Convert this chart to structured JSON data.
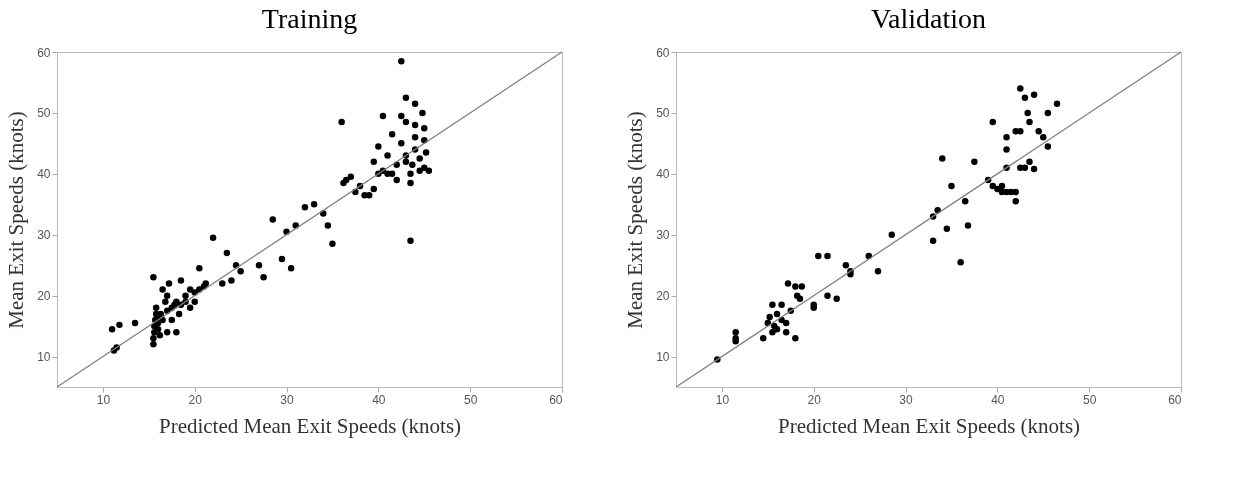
{
  "chart_data": [
    {
      "type": "scatter",
      "title": "Training",
      "xlabel": "Predicted  Mean Exit Speeds (knots)",
      "ylabel": "Mean Exit Speeds (knots)",
      "xlim": [
        5,
        60
      ],
      "ylim": [
        5,
        60
      ],
      "xticks": [
        10,
        20,
        30,
        40,
        50,
        60
      ],
      "yticks": [
        10,
        20,
        30,
        40,
        50,
        60
      ],
      "grid": false,
      "series": [
        {
          "marker": "circle",
          "color": "#000000",
          "x": [
            11,
            11.2,
            11.5,
            11.8,
            13.5,
            15.5,
            15.5,
            15.5,
            15.6,
            15.6,
            15.7,
            15.8,
            15.8,
            15.9,
            16,
            16,
            16.2,
            16.3,
            16.5,
            16.5,
            16.8,
            17,
            17,
            17,
            17.2,
            17.5,
            17.5,
            17.8,
            18,
            18,
            18.3,
            18.5,
            18.5,
            19,
            19,
            19.5,
            19.5,
            20,
            20,
            20.5,
            20.5,
            21,
            21.2,
            22,
            23,
            23.5,
            24,
            24.5,
            25,
            27,
            27.5,
            28.5,
            29.5,
            30,
            30.5,
            31,
            32,
            33,
            34,
            34.5,
            35,
            36,
            36.2,
            36.5,
            37,
            37.5,
            38,
            38.5,
            39,
            39.5,
            39.5,
            40,
            40,
            40.5,
            40.5,
            41,
            41,
            41.5,
            41.5,
            42,
            42,
            42.5,
            42.5,
            42.5,
            43,
            43,
            43,
            43,
            43.5,
            43.5,
            43.5,
            43.7,
            44,
            44,
            44,
            44,
            44.5,
            44.5,
            44.8,
            45,
            45,
            45.2,
            45.5,
            45
          ],
          "values": [
            14.5,
            11,
            11.5,
            15.2,
            15.5,
            23,
            12,
            13,
            14,
            15,
            16,
            17,
            18,
            16.5,
            14.5,
            15.5,
            13.5,
            17,
            21,
            16,
            19,
            20,
            14,
            17.5,
            22,
            18,
            16,
            18.5,
            19,
            14,
            17,
            22.5,
            18.5,
            19,
            20,
            21,
            18,
            20.5,
            19,
            24.5,
            21,
            21.5,
            22,
            29.5,
            22,
            27,
            22.5,
            25,
            24,
            25,
            23,
            32.5,
            26,
            30.5,
            24.5,
            31.5,
            34.5,
            35,
            33.5,
            31.5,
            28.5,
            48.5,
            38.5,
            39,
            39.5,
            37,
            38,
            36.5,
            36.5,
            37.5,
            42,
            40,
            44.5,
            49.5,
            40.5,
            43,
            40,
            40,
            46.5,
            41.5,
            39,
            49.5,
            58.5,
            45,
            43,
            42,
            52.5,
            48.5,
            40,
            29,
            38.5,
            41.5,
            44,
            51.5,
            48,
            46,
            42.5,
            40.5,
            50,
            47.5,
            41,
            43.5,
            40.5,
            45.5
          ]
        },
        {
          "type": "line",
          "color": "#808080",
          "x": [
            5,
            60
          ],
          "values": [
            5,
            60
          ]
        }
      ]
    },
    {
      "type": "scatter",
      "title": "Validation",
      "xlabel": "Predicted  Mean Exit Speeds (knots)",
      "ylabel": "Mean Exit Speeds (knots)",
      "xlim": [
        5,
        60
      ],
      "ylim": [
        5,
        60
      ],
      "xticks": [
        10,
        20,
        30,
        40,
        50,
        60
      ],
      "yticks": [
        10,
        20,
        30,
        40,
        50,
        60
      ],
      "grid": false,
      "series": [
        {
          "marker": "circle",
          "color": "#000000",
          "x": [
            9.5,
            11.5,
            11.5,
            11.5,
            14.5,
            15,
            15.2,
            15.5,
            15.5,
            15.7,
            16,
            16,
            16.5,
            16.5,
            17,
            17,
            17.2,
            17.5,
            18,
            18,
            18.2,
            18.5,
            18.7,
            20,
            20,
            20.5,
            21.5,
            21.5,
            22.5,
            23.5,
            24,
            24,
            26,
            27,
            28.5,
            33,
            33,
            33.5,
            34,
            34.5,
            35,
            36,
            36.5,
            36.8,
            37.5,
            39,
            39.5,
            39.5,
            40,
            40.5,
            40.5,
            41,
            41,
            41,
            41,
            41.5,
            42,
            42,
            42,
            42.5,
            42.5,
            42.5,
            43,
            43,
            43.5,
            43.5,
            44,
            44,
            44.5,
            45,
            45.5,
            45.5,
            46.5,
            43.3
          ],
          "values": [
            9.5,
            14,
            13,
            12.5,
            13,
            15.5,
            16.5,
            14,
            18.5,
            15,
            17,
            14.5,
            18.5,
            16,
            14,
            15.5,
            22,
            17.5,
            13,
            21.5,
            20,
            19.5,
            21.5,
            18.5,
            18,
            26.5,
            26.5,
            20,
            19.5,
            25,
            24,
            23.5,
            26.5,
            24,
            30,
            29,
            33,
            34,
            42.5,
            31,
            38,
            25.5,
            35.5,
            31.5,
            42,
            39,
            48.5,
            38,
            37.5,
            37,
            38,
            37,
            41,
            44,
            46,
            37,
            47,
            35.5,
            37,
            47,
            41,
            54,
            52.5,
            41,
            42,
            48.5,
            53,
            40.8,
            47,
            46,
            44.5,
            50,
            51.5,
            50
          ]
        },
        {
          "type": "line",
          "color": "#808080",
          "x": [
            5,
            60
          ],
          "values": [
            5,
            60
          ]
        }
      ]
    }
  ]
}
